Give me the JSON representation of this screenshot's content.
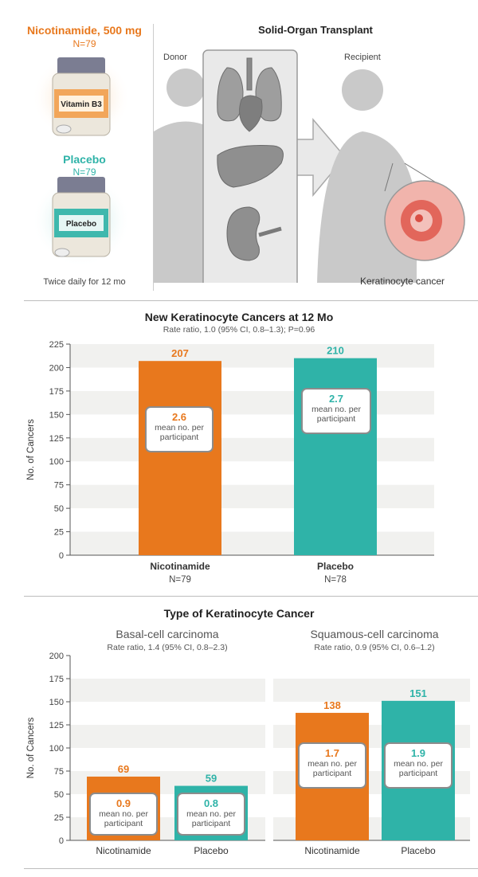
{
  "header": {
    "arm1": {
      "title": "Nicotinamide, 500 mg",
      "n": "N=79",
      "bottle_label": "Vitamin B3"
    },
    "arm2": {
      "title": "Placebo",
      "n": "N=79",
      "bottle_label": "Placebo"
    },
    "dosing": "Twice daily for 12 mo",
    "transplant": {
      "title": "Solid-Organ Transplant",
      "donor": "Donor",
      "recipient": "Recipient",
      "lesion": "Keratinocyte cancer"
    }
  },
  "colors": {
    "nicotinamide": "#e8781d",
    "placebo": "#2fb3a8",
    "band": "#f1f1ef",
    "axis": "#555555"
  },
  "chart_data": [
    {
      "type": "bar",
      "title": "New Keratinocyte Cancers at 12 Mo",
      "subtitle": "Rate ratio, 1.0 (95% CI, 0.8–1.3); P=0.96",
      "ylabel": "No. of Cancers",
      "ylim": [
        0,
        225
      ],
      "yticks": [
        "0",
        "25",
        "50",
        "75",
        "100",
        "125",
        "150",
        "175",
        "200",
        "225"
      ],
      "categories": [
        "Nicotinamide",
        "Placebo"
      ],
      "category_n": [
        "N=79",
        "N=78"
      ],
      "values": [
        207,
        210
      ],
      "value_labels": [
        "207",
        "210"
      ],
      "means": [
        "2.6",
        "2.7"
      ],
      "mean_label": "mean no. per participant"
    },
    {
      "type": "bar",
      "title": "Type of Keratinocyte Cancer",
      "ylabel": "No. of Cancers",
      "ylim": [
        0,
        200
      ],
      "yticks": [
        "0",
        "25",
        "50",
        "75",
        "100",
        "125",
        "150",
        "175",
        "200"
      ],
      "mean_label": "mean no. per participant",
      "panels": [
        {
          "title": "Basal-cell carcinoma",
          "subtitle": "Rate ratio, 1.4 (95% CI, 0.8–2.3)",
          "categories": [
            "Nicotinamide",
            "Placebo"
          ],
          "values": [
            69,
            59
          ],
          "value_labels": [
            "69",
            "59"
          ],
          "means": [
            "0.9",
            "0.8"
          ]
        },
        {
          "title": "Squamous-cell carcinoma",
          "subtitle": "Rate ratio, 0.9 (95% CI, 0.6–1.2)",
          "categories": [
            "Nicotinamide",
            "Placebo"
          ],
          "values": [
            138,
            151
          ],
          "value_labels": [
            "138",
            "151"
          ],
          "means": [
            "1.7",
            "1.9"
          ]
        }
      ]
    }
  ]
}
